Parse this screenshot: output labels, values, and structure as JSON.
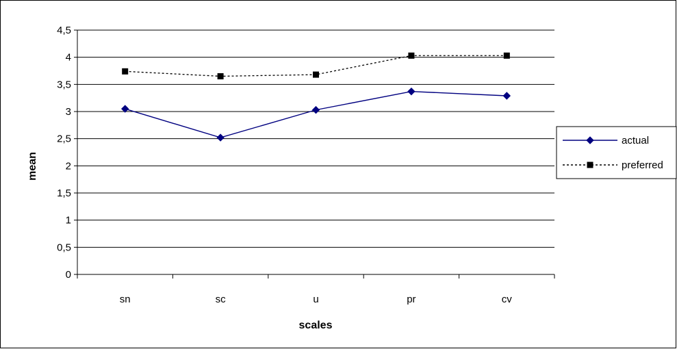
{
  "chart_data": {
    "type": "line",
    "categories": [
      "sn",
      "sc",
      "u",
      "pr",
      "cv"
    ],
    "series": [
      {
        "name": "actual",
        "values": [
          3.05,
          2.52,
          3.03,
          3.37,
          3.29
        ],
        "color": "#000080",
        "line_style": "solid",
        "marker": "diamond"
      },
      {
        "name": "preferred",
        "values": [
          3.74,
          3.65,
          3.68,
          4.03,
          4.03
        ],
        "color": "#000000",
        "line_style": "dotted",
        "marker": "square"
      }
    ],
    "xlabel": "scales",
    "ylabel": "mean",
    "ylim": [
      0,
      4.5
    ],
    "yticks": [
      0,
      0.5,
      1,
      1.5,
      2,
      2.5,
      3,
      3.5,
      4,
      4.5
    ],
    "ytick_labels": [
      "0",
      "0,5",
      "1",
      "1,5",
      "2",
      "2,5",
      "3",
      "3,5",
      "4",
      "4,5"
    ],
    "grid": "horizontal",
    "legend_position": "right"
  }
}
